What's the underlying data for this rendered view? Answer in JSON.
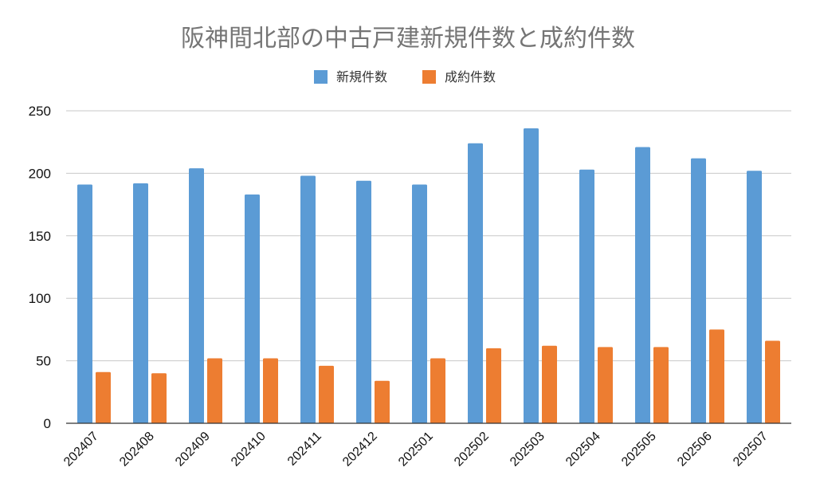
{
  "chart_data": {
    "type": "bar",
    "title": "阪神間北部の中古戸建新規件数と成約件数",
    "xlabel": "",
    "ylabel": "",
    "categories": [
      "202407",
      "202408",
      "202409",
      "202410",
      "202411",
      "202412",
      "202501",
      "202502",
      "202503",
      "202504",
      "202505",
      "202506",
      "202507"
    ],
    "series": [
      {
        "name": "新規件数",
        "color": "#5b9bd5",
        "values": [
          191,
          192,
          204,
          183,
          198,
          194,
          191,
          224,
          236,
          203,
          221,
          212,
          202
        ]
      },
      {
        "name": "成約件数",
        "color": "#ed7d31",
        "values": [
          41,
          40,
          52,
          52,
          46,
          34,
          52,
          60,
          62,
          61,
          61,
          75,
          66
        ]
      }
    ],
    "ylim": [
      0,
      250
    ],
    "yticks": [
      0,
      50,
      100,
      150,
      200,
      250
    ],
    "grid": true,
    "legend_position": "top"
  }
}
